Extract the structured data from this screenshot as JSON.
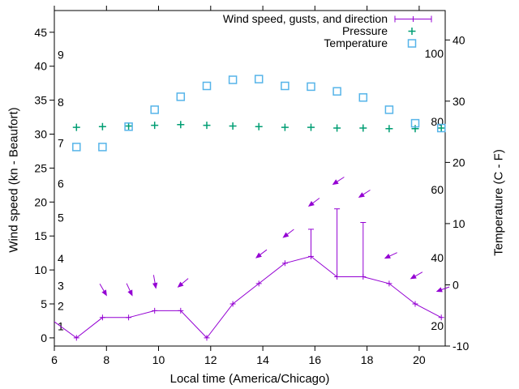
{
  "chart_data": {
    "type": "line",
    "title": "",
    "xlabel": "Local time (America/Chicago)",
    "ylabel": "Wind speed (kn - Beaufort)",
    "y2label": "Temperature (C - F)",
    "grid": false,
    "legend_position": "top-right-inside",
    "x_range": [
      6,
      21
    ],
    "x_ticks": [
      6,
      8,
      10,
      12,
      14,
      16,
      18,
      20
    ],
    "y_range": [
      -1.2,
      48.2
    ],
    "y_ticks": [
      0,
      5,
      10,
      15,
      20,
      25,
      30,
      35,
      40,
      45
    ],
    "y2_range": [
      -10,
      44.8
    ],
    "y2_ticks": [
      -10,
      0,
      10,
      20,
      30,
      40
    ],
    "beaufort_scale_labels": [
      {
        "label": "1",
        "kn": 1
      },
      {
        "label": "2",
        "kn": 4
      },
      {
        "label": "3",
        "kn": 7
      },
      {
        "label": "4",
        "kn": 11
      },
      {
        "label": "5",
        "kn": 17
      },
      {
        "label": "6",
        "kn": 22
      },
      {
        "label": "7",
        "kn": 28
      },
      {
        "label": "8",
        "kn": 34
      },
      {
        "label": "9",
        "kn": 41
      }
    ],
    "fahrenheit_scale_labels": [
      {
        "label": "20",
        "f": 20
      },
      {
        "label": "40",
        "f": 40
      },
      {
        "label": "60",
        "f": 60
      },
      {
        "label": "80",
        "f": 80
      },
      {
        "label": "100",
        "f": 100
      }
    ],
    "legend": [
      {
        "label": "Wind speed, gusts, and direction",
        "color": "#9400d3"
      },
      {
        "label": "Pressure",
        "color": "#009e73"
      },
      {
        "label": "Temperature",
        "color": "#56b4e9"
      }
    ],
    "series": [
      {
        "name": "Wind speed, gusts, and direction",
        "type": "line+gust-errorbars+direction-vectors",
        "color": "#9400d3",
        "x": [
          5.85,
          6.85,
          7.85,
          8.85,
          9.85,
          10.85,
          11.85,
          12.85,
          13.85,
          14.85,
          15.85,
          16.85,
          17.85,
          18.85,
          19.85,
          20.85
        ],
        "speed_kn": [
          2.8,
          0,
          3,
          3,
          4,
          4,
          0,
          5,
          8,
          11,
          12,
          9,
          9,
          8,
          5,
          3
        ],
        "gust_kn": [
          null,
          null,
          null,
          null,
          null,
          null,
          null,
          null,
          null,
          null,
          16,
          19,
          17,
          null,
          null,
          null
        ],
        "direction_arrows": [
          {
            "x": 7.98,
            "kn": 6.4,
            "angle_deg": 60
          },
          {
            "x": 8.97,
            "kn": 6.4,
            "angle_deg": 65
          },
          {
            "x": 9.89,
            "kn": 7.5,
            "angle_deg": 80
          },
          {
            "x": 10.78,
            "kn": 7.6,
            "angle_deg": 140
          },
          {
            "x": 13.78,
            "kn": 11.9,
            "angle_deg": 143
          },
          {
            "x": 14.82,
            "kn": 14.9,
            "angle_deg": 143
          },
          {
            "x": 15.8,
            "kn": 19.5,
            "angle_deg": 143
          },
          {
            "x": 16.73,
            "kn": 22.7,
            "angle_deg": 147
          },
          {
            "x": 17.73,
            "kn": 20.8,
            "angle_deg": 147
          },
          {
            "x": 18.73,
            "kn": 11.8,
            "angle_deg": 155
          },
          {
            "x": 19.72,
            "kn": 8.8,
            "angle_deg": 150
          },
          {
            "x": 20.72,
            "kn": 6.9,
            "angle_deg": 160
          }
        ]
      },
      {
        "name": "Pressure",
        "type": "points-plus",
        "color": "#009e73",
        "x": [
          6.85,
          7.85,
          8.85,
          9.85,
          10.85,
          11.85,
          12.85,
          13.85,
          14.85,
          15.85,
          16.85,
          17.85,
          18.85,
          19.85,
          20.85
        ],
        "value_kn_scale": [
          31.0,
          31.1,
          31.2,
          31.3,
          31.4,
          31.3,
          31.2,
          31.1,
          31.0,
          31.0,
          30.9,
          30.9,
          30.8,
          30.8,
          30.9
        ]
      },
      {
        "name": "Temperature",
        "type": "points-square",
        "color": "#56b4e9",
        "x": [
          6.85,
          7.85,
          8.85,
          9.85,
          10.85,
          11.85,
          12.85,
          13.85,
          14.85,
          15.85,
          16.85,
          17.85,
          18.85,
          19.85,
          20.85
        ],
        "value_kn_scale": [
          28.1,
          28.1,
          31.1,
          33.6,
          35.5,
          37.1,
          38.0,
          38.1,
          37.1,
          37.0,
          36.3,
          35.4,
          33.6,
          31.6,
          30.9
        ],
        "value_celsius_approx": [
          22.5,
          22.5,
          25.8,
          28.6,
          30.7,
          32.5,
          33.5,
          33.6,
          32.5,
          32.4,
          31.6,
          30.6,
          28.6,
          26.4,
          25.6
        ]
      }
    ]
  }
}
